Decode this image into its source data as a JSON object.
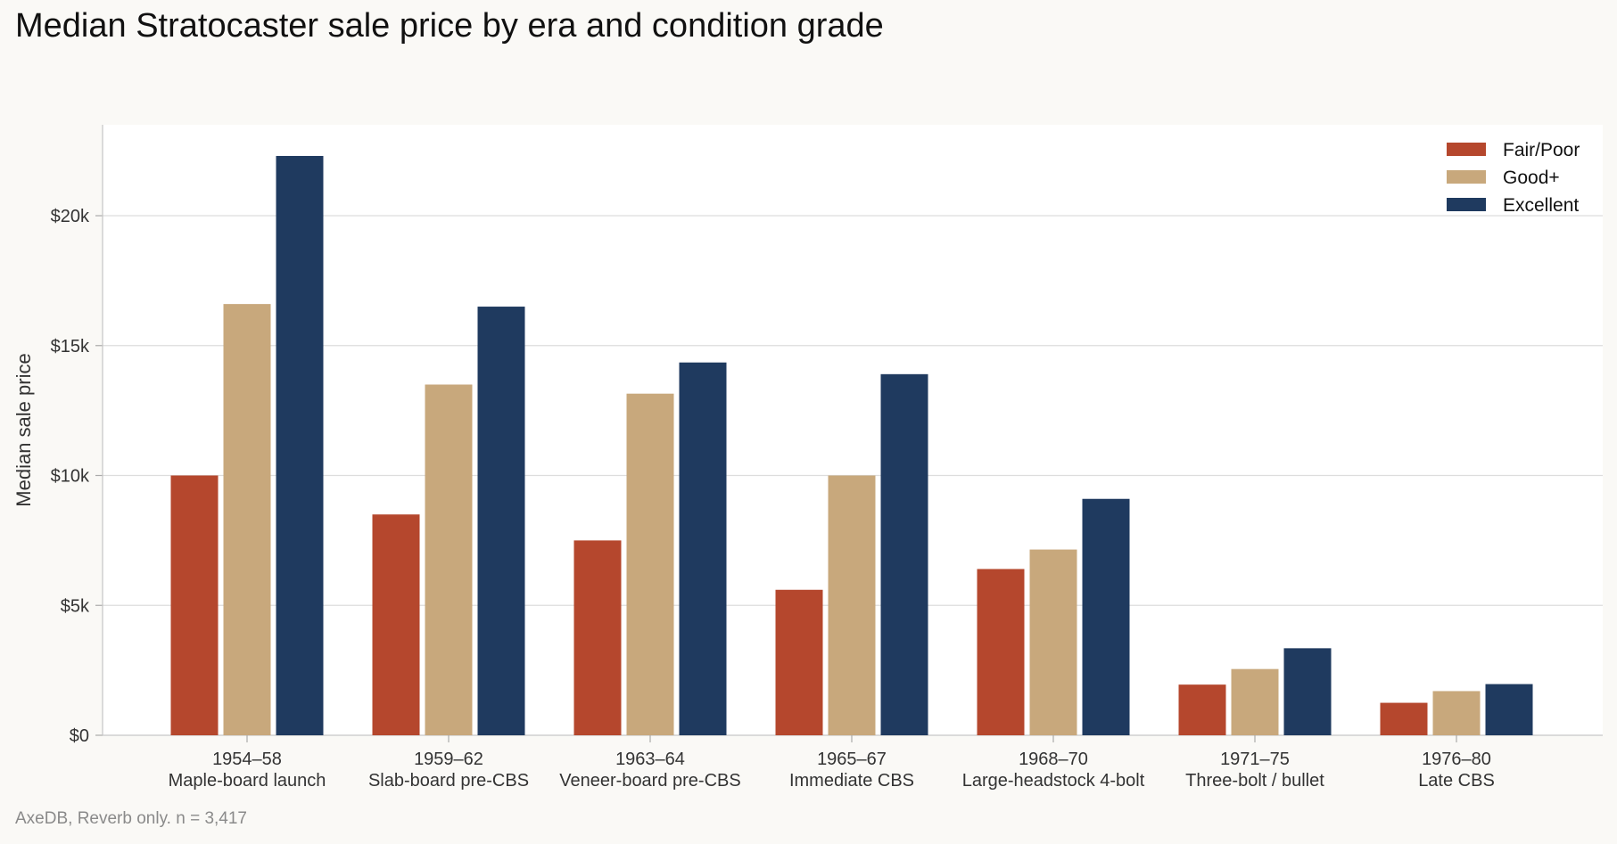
{
  "chart_data": {
    "type": "bar",
    "title": "Median Stratocaster sale price by era and condition grade",
    "xlabel": "",
    "ylabel": "Median sale price",
    "ylim": [
      0,
      23500
    ],
    "yticks": [
      0,
      5000,
      10000,
      15000,
      20000
    ],
    "ytick_labels": [
      "$0",
      "$5k",
      "$10k",
      "$15k",
      "$20k"
    ],
    "grid": true,
    "legend_position": "top-right",
    "categories": [
      {
        "years": "1954–58",
        "name": "Maple-board launch"
      },
      {
        "years": "1959–62",
        "name": "Slab-board pre-CBS"
      },
      {
        "years": "1963–64",
        "name": "Veneer-board pre-CBS"
      },
      {
        "years": "1965–67",
        "name": "Immediate CBS"
      },
      {
        "years": "1968–70",
        "name": "Large-headstock 4-bolt"
      },
      {
        "years": "1971–75",
        "name": "Three-bolt / bullet"
      },
      {
        "years": "1976–80",
        "name": "Late CBS"
      }
    ],
    "series": [
      {
        "name": "Fair/Poor",
        "color": "#b5472d",
        "values": [
          10000,
          8500,
          7500,
          5600,
          6400,
          1950,
          1250
        ]
      },
      {
        "name": "Good+",
        "color": "#c8a87c",
        "values": [
          16600,
          13500,
          13150,
          10000,
          7150,
          2550,
          1700
        ]
      },
      {
        "name": "Excellent",
        "color": "#1f3a5f",
        "values": [
          22300,
          16500,
          14350,
          13900,
          9100,
          3350,
          1970
        ]
      }
    ]
  },
  "source_note": "AxeDB, Reverb only. n = 3,417"
}
